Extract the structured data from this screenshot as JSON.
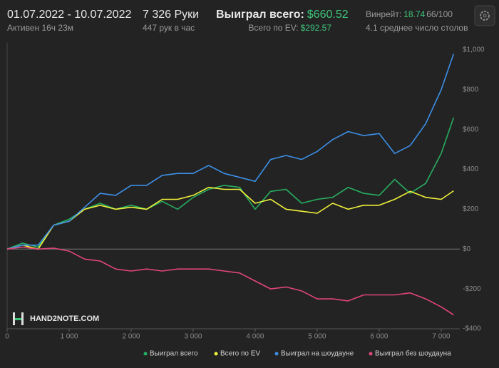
{
  "header": {
    "period": "01.07.2022 - 10.07.2022",
    "active": "Активен 16ч 23м",
    "hands": "7 326 Руки",
    "hands_per_hour": "447 рук в час",
    "won_label": "Выиграл всего:",
    "won_value": "$660.52",
    "ev_label": "Всего по EV:",
    "ev_value": "$292.57",
    "winrate_label": "Винрейт:",
    "winrate_value": "18.74",
    "winrate_unit": "66/100",
    "tables": "4.1 среднее число столов"
  },
  "chart_data": {
    "type": "line",
    "watermark": "HAND2NOTE.COM",
    "x": [
      0,
      250,
      500,
      750,
      1000,
      1250,
      1500,
      1750,
      2000,
      2250,
      2500,
      2750,
      3000,
      3250,
      3500,
      3750,
      4000,
      4250,
      4500,
      4750,
      5000,
      5250,
      5500,
      5750,
      6000,
      6250,
      6500,
      6750,
      7000,
      7200
    ],
    "series": [
      {
        "name": "Выиграл всего",
        "color": "#27ae60",
        "values": [
          0,
          30,
          10,
          120,
          150,
          200,
          230,
          200,
          220,
          200,
          240,
          200,
          260,
          300,
          320,
          310,
          200,
          290,
          300,
          230,
          250,
          260,
          310,
          280,
          270,
          350,
          280,
          330,
          480,
          660
        ]
      },
      {
        "name": "Всего по EV",
        "color": "#f1f13a",
        "values": [
          0,
          20,
          0,
          120,
          140,
          200,
          220,
          200,
          210,
          200,
          250,
          250,
          270,
          310,
          300,
          300,
          230,
          250,
          200,
          190,
          180,
          230,
          200,
          220,
          220,
          250,
          290,
          260,
          250,
          292.57
        ]
      },
      {
        "name": "Выиграл на шоудауне",
        "color": "#3d8fe6",
        "values": [
          0,
          20,
          20,
          120,
          140,
          210,
          280,
          270,
          320,
          320,
          370,
          380,
          380,
          420,
          380,
          360,
          340,
          450,
          470,
          450,
          490,
          550,
          590,
          570,
          580,
          480,
          520,
          630,
          800,
          980
        ]
      },
      {
        "name": "Выиграл без шоудауна",
        "color": "#e0457b",
        "values": [
          0,
          10,
          0,
          5,
          -10,
          -50,
          -60,
          -100,
          -110,
          -100,
          -110,
          -100,
          -100,
          -100,
          -110,
          -120,
          -160,
          -200,
          -190,
          -210,
          -250,
          -250,
          -260,
          -230,
          -230,
          -230,
          -220,
          -250,
          -290,
          -330
        ]
      }
    ],
    "xlim": [
      0,
      7300
    ],
    "ylim": [
      -400,
      1000
    ],
    "xticks": [
      0,
      {
        "value": 1000,
        "label": "1 000"
      },
      {
        "value": 2000,
        "label": "2 000"
      },
      {
        "value": 3000,
        "label": "3 000"
      },
      {
        "value": 4000,
        "label": "4 000"
      },
      {
        "value": 5000,
        "label": "5 000"
      },
      {
        "value": 6000,
        "label": "6 000"
      },
      {
        "value": 7000,
        "label": "7 000"
      }
    ],
    "yticks": [
      {
        "value": -400,
        "label": "-$400"
      },
      {
        "value": -200,
        "label": "-$200"
      },
      {
        "value": 0,
        "label": "$0"
      },
      {
        "value": 200,
        "label": "$200"
      },
      {
        "value": 400,
        "label": "$400"
      },
      {
        "value": 600,
        "label": "$600"
      },
      {
        "value": 800,
        "label": "$800"
      },
      {
        "value": 1000,
        "label": "$1,000"
      }
    ],
    "zero_line": true
  }
}
